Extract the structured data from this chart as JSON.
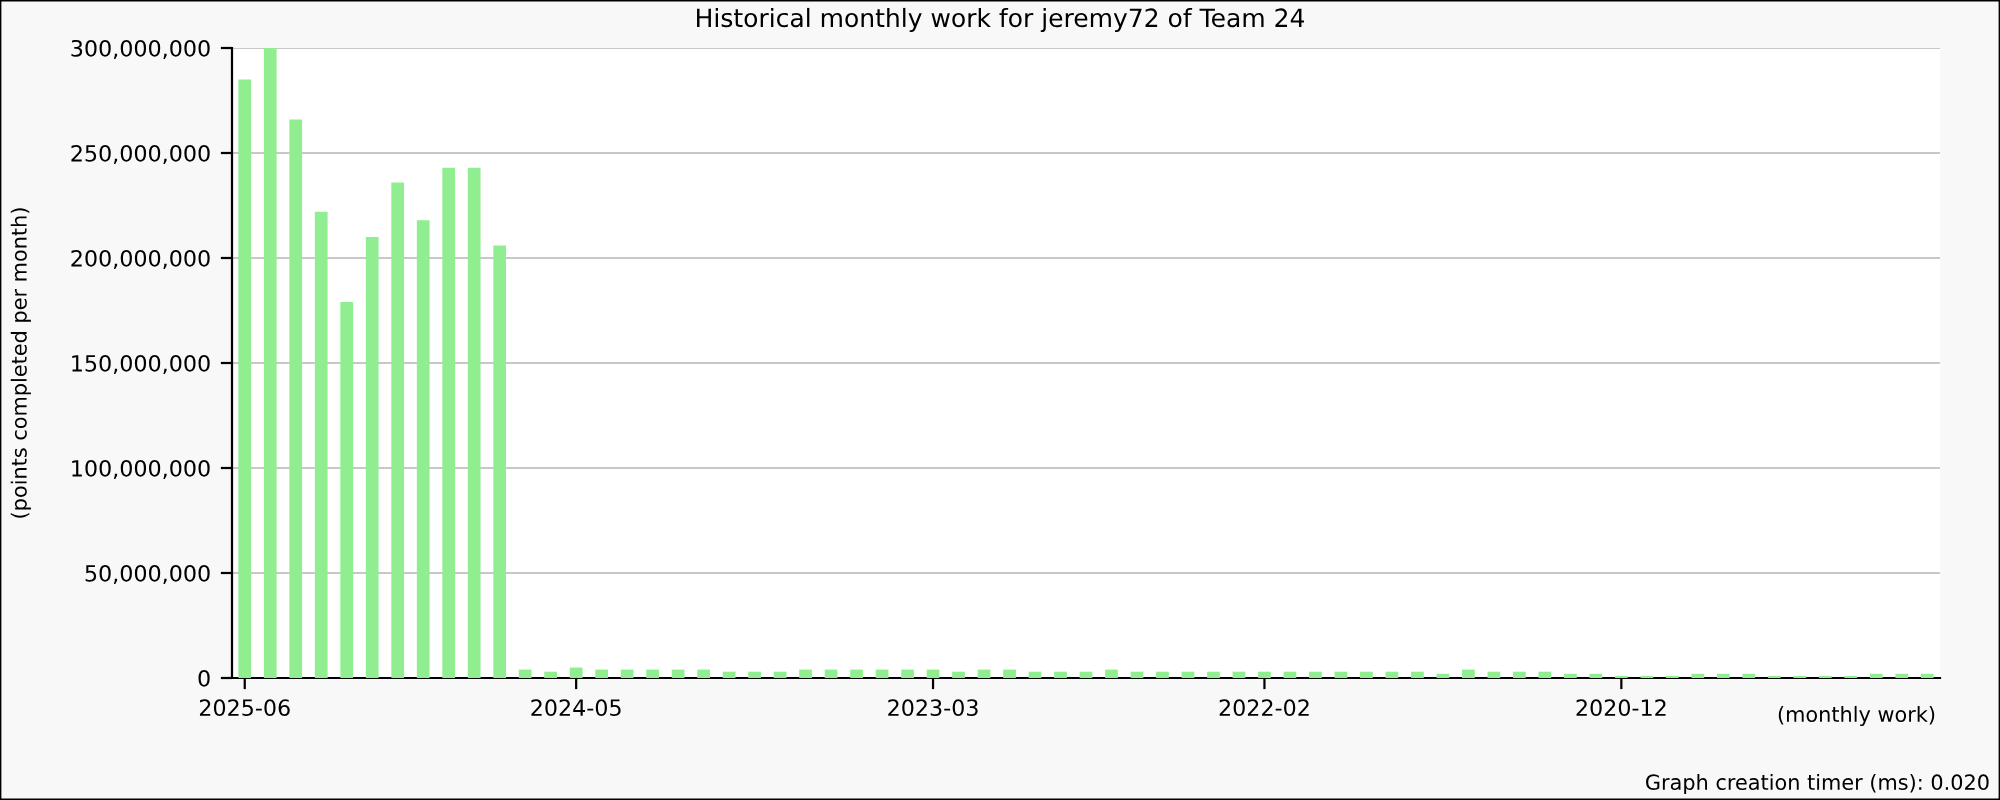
{
  "chart_data": {
    "type": "bar",
    "title": "Historical monthly work for jeremy72 of Team 24",
    "xlabel": "(monthly work)",
    "ylabel": "(points completed per month)",
    "categories": [
      "2025-06",
      null,
      null,
      null,
      null,
      null,
      null,
      null,
      null,
      null,
      null,
      null,
      null,
      "2024-05",
      null,
      null,
      null,
      null,
      null,
      null,
      null,
      null,
      null,
      null,
      null,
      null,
      null,
      "2023-03",
      null,
      null,
      null,
      null,
      null,
      null,
      null,
      null,
      null,
      null,
      null,
      null,
      "2022-02",
      null,
      null,
      null,
      null,
      null,
      null,
      null,
      null,
      null,
      null,
      null,
      null,
      null,
      "2020-12",
      null,
      null,
      null,
      null,
      null,
      null,
      null,
      null,
      null,
      null,
      null,
      null
    ],
    "values": [
      285000000,
      300000000,
      266000000,
      222000000,
      179000000,
      210000000,
      236000000,
      218000000,
      243000000,
      243000000,
      206000000,
      4000000,
      3000000,
      5000000,
      4000000,
      4000000,
      4000000,
      4000000,
      4000000,
      3000000,
      3000000,
      3000000,
      4000000,
      4000000,
      4000000,
      4000000,
      4000000,
      4000000,
      3000000,
      4000000,
      4000000,
      3000000,
      3000000,
      3000000,
      4000000,
      3000000,
      3000000,
      3000000,
      3000000,
      3000000,
      3000000,
      3000000,
      3000000,
      3000000,
      3000000,
      3000000,
      3000000,
      2000000,
      4000000,
      3000000,
      3000000,
      3000000,
      2000000,
      2000000,
      1000000,
      1000000,
      1000000,
      2000000,
      2000000,
      2000000,
      1000000,
      1000000,
      1000000,
      1000000,
      2000000,
      2000000,
      2000000
    ],
    "color": "#90ee90",
    "ylim": [
      0,
      300000000
    ],
    "yticks": [
      {
        "value": 0,
        "label": "0"
      },
      {
        "value": 50000000,
        "label": "50,000,000"
      },
      {
        "value": 100000000,
        "label": "100,000,000"
      },
      {
        "value": 150000000,
        "label": "150,000,000"
      },
      {
        "value": 200000000,
        "label": "200,000,000"
      },
      {
        "value": 250000000,
        "label": "250,000,000"
      },
      {
        "value": 300000000,
        "label": "300,000,000"
      }
    ],
    "grid": "y",
    "legend": false,
    "annotations": [
      "Graph creation timer (ms): 0.020"
    ]
  }
}
